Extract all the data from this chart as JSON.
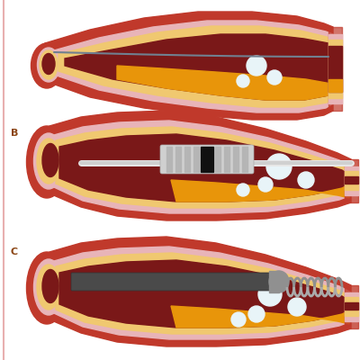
{
  "bg_color": "#ffffff",
  "label_B": "B",
  "label_C": "C",
  "label_color": "#8B4513",
  "label_fontsize": 8,
  "outer_red": "#c0392b",
  "outer_red2": "#cd5c5c",
  "wall_pink": "#e8b4b8",
  "adventitia": "#f0c870",
  "lumen_dark": "#7a1818",
  "plaque_orange": "#e8950a",
  "calcium_white": "#e8f4f8",
  "wire_gray": "#708090",
  "device_gray": "#c8c8c8",
  "shaft_dark": "#555555",
  "coil_gray": "#aaaaaa",
  "band_black": "#111111",
  "cut_face_pink": "#d4a0a0",
  "cut_face_yellow": "#d4b870",
  "cut_face_dark": "#8a3030"
}
